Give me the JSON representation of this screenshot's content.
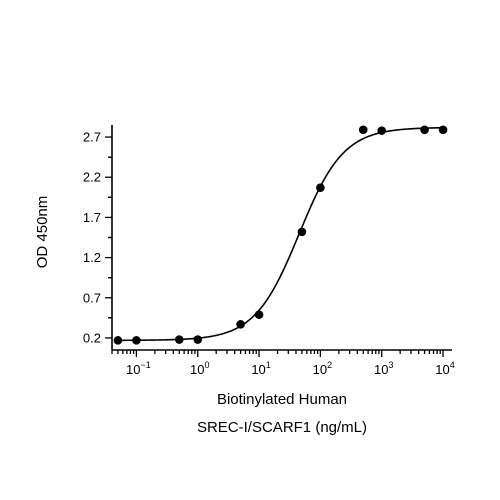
{
  "chart_data": {
    "type": "scatter",
    "xlabel_lines": [
      "Biotinylated Human",
      "SREC-I/SCARF1 (ng/mL)"
    ],
    "ylabel": "OD 450nm",
    "x_scale": "log",
    "xlim": [
      0.04,
      14000
    ],
    "ylim": [
      0.05,
      2.85
    ],
    "x_ticks": [
      {
        "value": 0.1,
        "base": "10",
        "exp": "−1"
      },
      {
        "value": 1,
        "base": "10",
        "exp": "0"
      },
      {
        "value": 10,
        "base": "10",
        "exp": "1"
      },
      {
        "value": 100,
        "base": "10",
        "exp": "2"
      },
      {
        "value": 1000,
        "base": "10",
        "exp": "3"
      },
      {
        "value": 10000,
        "base": "10",
        "exp": "4"
      }
    ],
    "y_ticks": [
      0.2,
      0.7,
      1.2,
      1.7,
      2.2,
      2.7
    ],
    "y_tick_labels": [
      "0.2",
      "0.7",
      "1.2",
      "1.7",
      "2.2",
      "2.7"
    ],
    "grid": false,
    "legend": "none",
    "series": [
      {
        "x": [
          0.05,
          0.1,
          0.5,
          1,
          5,
          10,
          50,
          100,
          500,
          1000,
          5000,
          10000
        ],
        "y": [
          0.17,
          0.17,
          0.18,
          0.18,
          0.37,
          0.49,
          1.52,
          2.07,
          2.79,
          2.78,
          2.79,
          2.79
        ],
        "marker": "circle",
        "color": "#000000"
      }
    ],
    "fit_curve": {
      "model": "4PL",
      "bottom": 0.17,
      "top": 2.82,
      "ec50": 45,
      "hill": 1.2,
      "color": "#000000"
    }
  }
}
